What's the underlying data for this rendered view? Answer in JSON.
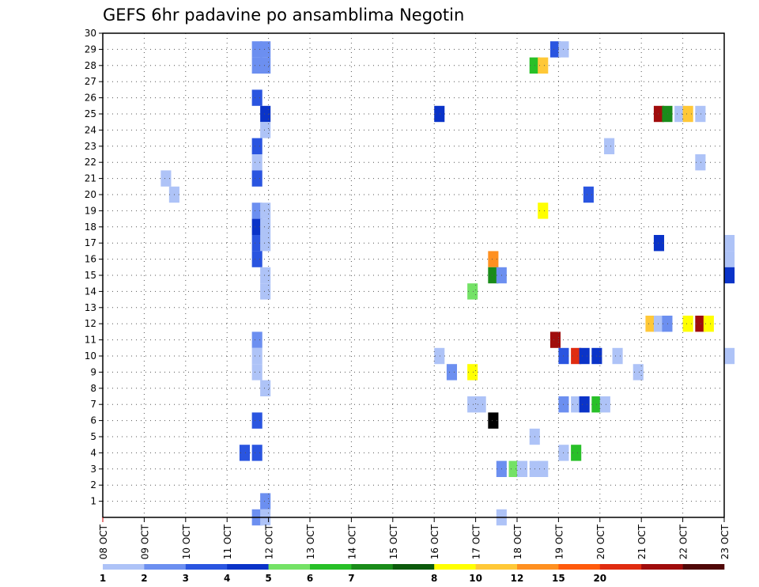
{
  "chart_data": {
    "type": "heatmap",
    "title": "GEFS 6hr padavine po ansamblima Negotin",
    "xlabel": "",
    "ylabel": "",
    "x_tick_labels": [
      "08 OCT",
      "09 OCT",
      "10 OCT",
      "11 OCT",
      "12 OCT",
      "13 OCT",
      "14 OCT",
      "15 OCT",
      "16 OCT",
      "17 OCT",
      "18 OCT",
      "19 OCT",
      "20 OCT",
      "21 OCT",
      "22 OCT",
      "23 OCT"
    ],
    "y_tick_labels": [
      "1",
      "2",
      "3",
      "4",
      "5",
      "6",
      "7",
      "8",
      "9",
      "10",
      "11",
      "12",
      "13",
      "14",
      "15",
      "16",
      "17",
      "18",
      "19",
      "20",
      "21",
      "22",
      "23",
      "24",
      "25",
      "26",
      "27",
      "28",
      "29",
      "30"
    ],
    "x_unit": "days since 08 OCT",
    "xlim": [
      0,
      15
    ],
    "ylim": [
      0,
      30
    ],
    "grid": true,
    "colorbar": {
      "labels": [
        "1",
        "2",
        "3",
        "4",
        "5",
        "6",
        "7",
        "8",
        "10",
        "12",
        "15",
        "20"
      ],
      "colors": [
        "#aec3f7",
        "#6c8ff0",
        "#2a55e0",
        "#0a33c8",
        "#74e266",
        "#28c028",
        "#1a8c1a",
        "#0c5a0c",
        "#ffff00",
        "#ffc837",
        "#ff9020",
        "#ff5a0c",
        "#e02c10",
        "#a00c0c",
        "#500808"
      ]
    },
    "cells": [
      [
        3.6,
        0,
        1
      ],
      [
        3.8,
        1,
        1
      ],
      [
        9.5,
        0,
        0
      ],
      [
        8.3,
        9,
        1
      ],
      [
        8.8,
        9,
        8
      ],
      [
        9.3,
        6,
        15
      ],
      [
        9.3,
        16,
        10
      ],
      [
        3.6,
        29,
        1
      ],
      [
        3.8,
        29,
        1
      ],
      [
        3.6,
        28,
        1
      ],
      [
        3.8,
        28,
        1
      ],
      [
        10.3,
        28,
        5
      ],
      [
        10.5,
        28,
        9
      ],
      [
        10.8,
        29,
        2
      ],
      [
        11.0,
        29,
        0
      ],
      [
        3.6,
        26,
        2
      ],
      [
        3.8,
        25,
        3
      ],
      [
        3.8,
        24,
        0
      ],
      [
        8.0,
        25,
        3
      ],
      [
        13.3,
        25,
        13
      ],
      [
        13.5,
        25,
        6
      ],
      [
        13.8,
        25,
        0
      ],
      [
        14.0,
        25,
        9
      ],
      [
        14.3,
        25,
        0
      ],
      [
        3.6,
        23,
        2
      ],
      [
        12.1,
        23,
        0
      ],
      [
        3.6,
        22,
        0
      ],
      [
        14.3,
        22,
        0
      ],
      [
        1.4,
        21,
        0
      ],
      [
        3.6,
        21,
        2
      ],
      [
        1.6,
        20,
        0
      ],
      [
        11.6,
        20,
        2
      ],
      [
        3.6,
        19,
        1
      ],
      [
        3.8,
        19,
        0
      ],
      [
        10.5,
        19,
        8
      ],
      [
        3.6,
        18,
        3
      ],
      [
        3.8,
        18,
        0
      ],
      [
        3.6,
        17,
        2
      ],
      [
        3.8,
        17,
        0
      ],
      [
        13.3,
        17,
        3
      ],
      [
        15.0,
        17,
        0
      ],
      [
        3.6,
        16,
        2
      ],
      [
        15.0,
        16,
        0
      ],
      [
        9.3,
        15,
        6
      ],
      [
        9.5,
        15,
        1
      ],
      [
        3.8,
        15,
        0
      ],
      [
        15.0,
        15,
        3
      ],
      [
        3.8,
        14,
        0
      ],
      [
        8.8,
        14,
        4
      ],
      [
        13.1,
        12,
        9
      ],
      [
        13.3,
        12,
        0
      ],
      [
        13.5,
        12,
        1
      ],
      [
        14.0,
        12,
        8
      ],
      [
        14.3,
        12,
        13
      ],
      [
        14.5,
        12,
        8
      ],
      [
        3.6,
        11,
        1
      ],
      [
        10.8,
        11,
        13
      ],
      [
        3.6,
        10,
        0
      ],
      [
        8.0,
        10,
        0
      ],
      [
        11.0,
        10,
        2
      ],
      [
        11.3,
        10,
        12
      ],
      [
        11.5,
        10,
        3
      ],
      [
        11.8,
        10,
        3
      ],
      [
        12.3,
        10,
        0
      ],
      [
        15.0,
        10,
        0
      ],
      [
        3.6,
        9,
        0
      ],
      [
        12.8,
        9,
        0
      ],
      [
        3.8,
        8,
        0
      ],
      [
        8.8,
        7,
        0
      ],
      [
        9.0,
        7,
        0
      ],
      [
        11.0,
        7,
        1
      ],
      [
        11.3,
        7,
        0
      ],
      [
        11.5,
        7,
        3
      ],
      [
        11.8,
        7,
        5
      ],
      [
        12.0,
        7,
        0
      ],
      [
        3.6,
        6,
        2
      ],
      [
        10.3,
        5,
        0
      ],
      [
        3.3,
        4,
        2
      ],
      [
        3.6,
        4,
        2
      ],
      [
        11.0,
        4,
        0
      ],
      [
        11.3,
        4,
        5
      ],
      [
        9.5,
        3,
        1
      ],
      [
        9.8,
        3,
        4
      ],
      [
        10.0,
        3,
        0
      ],
      [
        10.3,
        3,
        0
      ],
      [
        10.5,
        3,
        0
      ],
      [
        3.8,
        0,
        0
      ]
    ]
  }
}
